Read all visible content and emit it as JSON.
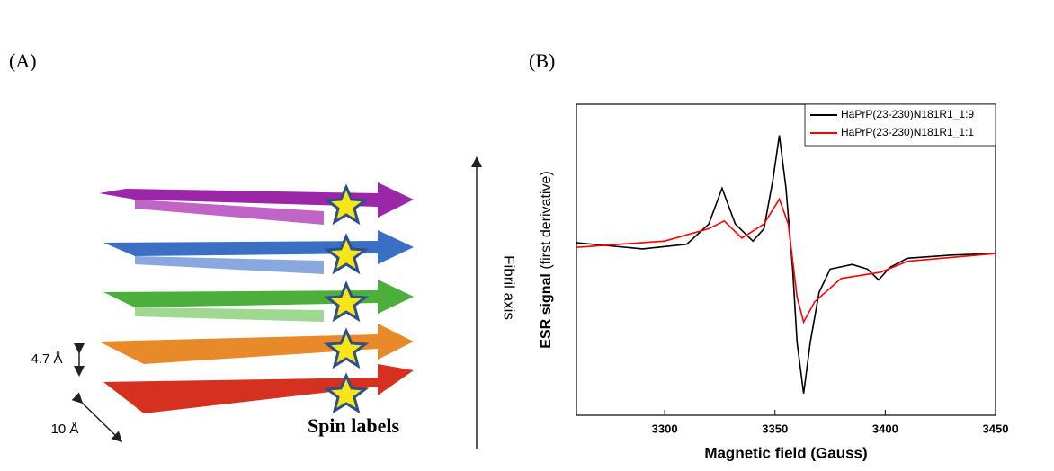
{
  "panel_a": {
    "label": "(A)",
    "axis_label": "Fibril axis",
    "spacing_label": "4.7 Å",
    "width_label": "10 Å",
    "spin_label": "Spin labels"
  },
  "panel_b_label": "(B)",
  "chart_data": {
    "type": "line",
    "xlabel": "Magnetic field (Gauss)",
    "ylabel": "ESR signal",
    "ylabel_note": "(first derivative)",
    "xlim": [
      3260,
      3450
    ],
    "xticks": [
      3300,
      3350,
      3400,
      3450
    ],
    "ylim": [
      -1,
      1
    ],
    "legend": "top-right",
    "series": [
      {
        "name": "HaPrP(23-230)N181R1_1:9",
        "color": "#000000",
        "x": [
          3260,
          3290,
          3310,
          3320,
          3326,
          3332,
          3340,
          3345,
          3349,
          3352,
          3355,
          3358,
          3360,
          3363,
          3366,
          3370,
          3375,
          3385,
          3392,
          3397,
          3402,
          3410,
          3430,
          3450
        ],
        "values": [
          0.11,
          0.07,
          0.1,
          0.23,
          0.46,
          0.23,
          0.12,
          0.2,
          0.51,
          0.8,
          0.46,
          -0.06,
          -0.53,
          -0.86,
          -0.53,
          -0.21,
          -0.06,
          -0.03,
          -0.06,
          -0.13,
          -0.05,
          0.01,
          0.03,
          0.04
        ]
      },
      {
        "name": "HaPrP(23-230)N181R1_1:1",
        "color": "#ff0000",
        "x": [
          3260,
          3300,
          3320,
          3327,
          3335,
          3345,
          3352,
          3356,
          3360,
          3363,
          3368,
          3380,
          3398,
          3410,
          3450
        ],
        "values": [
          0.08,
          0.12,
          0.2,
          0.25,
          0.14,
          0.23,
          0.39,
          0.23,
          -0.24,
          -0.4,
          -0.27,
          -0.12,
          -0.08,
          -0.01,
          0.04
        ]
      }
    ]
  }
}
